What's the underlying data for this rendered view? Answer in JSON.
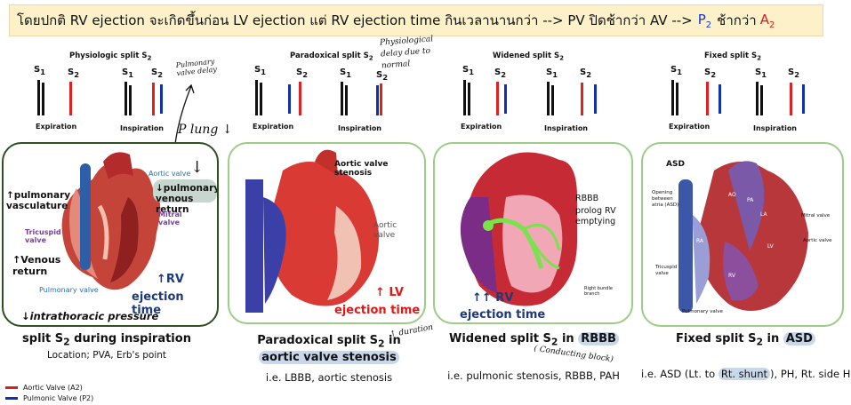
{
  "header": {
    "thai_text": "โดยปกติ RV ejection จะเกิดขึ้นก่อน LV ejection แต่ RV ejection time กินเวลานานกว่า  -->  PV ปิดช้ากว่า AV -->",
    "p2": "P",
    "p2_sub": "2",
    "middle": "ช้ากว่า",
    "a2": "A",
    "a2_sub": "2"
  },
  "colors": {
    "aortic": "#d22222",
    "pulmonic": "#1030b0",
    "banner_bg": "#fdf1c9",
    "panel_green": "#9ccc86",
    "panel_dark": "#2f4f23"
  },
  "plots": {
    "s1": "S",
    "s1_sub": "1",
    "s2": "S",
    "s2_sub": "2",
    "expiration": "Expiration",
    "inspiration": "Inspiration",
    "physiologic": "Physiologic split S",
    "paradoxical": "Paradoxical split S",
    "widened": "Widened split S",
    "fixed": "Fixed split S",
    "title_sub": "2"
  },
  "panel1": {
    "aortic_valve": "Aortic valve",
    "pulmonary_vasculature": "↑pulmonary vasculature",
    "pulm_venous_return": "↓pulmonary venous return",
    "mitral_valve": "Mitral valve",
    "tricuspid_valve": "Tricuspid valve",
    "venous_return": "↑Venous return",
    "pulmonary_valve": "Pulmonary valve",
    "rv_line1": "↑RV",
    "rv_line2": "ejection time",
    "intrathoracic": "↓intrathoracic pressure"
  },
  "panel2": {
    "aortic_stenosis": "Aortic valve stenosis",
    "aortic_valve": "Aortic valve",
    "lv_line1": "↑ LV",
    "lv_line2": "ejection time"
  },
  "panel3": {
    "rbbb": "RBBB",
    "prolog": "prolog RV emptying",
    "right_bundle": "Right bundle branch",
    "rv_line1": "↑↑ RV",
    "rv_line2": "ejection time"
  },
  "panel4": {
    "asd": "ASD",
    "opening": "Opening between atria (ASD)",
    "ao": "AO",
    "pa": "PA",
    "la": "LA",
    "ra": "RA",
    "lv": "LV",
    "rv": "RV",
    "mitral": "Mitral valve",
    "aortic": "Aortic valve",
    "tricuspid": "Tricuspid valve",
    "pulmonary": "Pulmonary valve"
  },
  "captions": {
    "c1": "split S",
    "c1_sub": "2",
    "c1_rest": " during inspiration",
    "c1_note": "Location; PVA, Erb's point",
    "c2_a": "Paradoxical split S",
    "c2_sub": "2",
    "c2_b": " in",
    "c2_line2": "aortic valve stenosis",
    "c2_note": "i.e. LBBB, aortic stenosis",
    "c3_a": "Widened split S",
    "c3_sub": "2",
    "c3_b": " in ",
    "c3_hl": "RBBB",
    "c3_note": "i.e. pulmonic stenosis, RBBB, PAH",
    "c4_a": "Fixed split S",
    "c4_sub": "2",
    "c4_b": " in ",
    "c4_hl": "ASD",
    "c4_note_a": "i.e. ASD (Lt. to ",
    "c4_note_hl": "Rt. shunt",
    "c4_note_b": "), PH, Rt. side HF"
  },
  "handwriting": {
    "pulm_valve_delay": "Pulmonary valve delay",
    "physio_delay": "Physiological delay due to normal",
    "p_lung": "P lung ↓",
    "down_arrow": "↓",
    "duration": "↑ duration",
    "conducting": "( Conducting block)"
  },
  "legend": {
    "aortic": "Aortic Valve (A2)",
    "pulmonic": "Pulmonic Valve (P2)"
  }
}
